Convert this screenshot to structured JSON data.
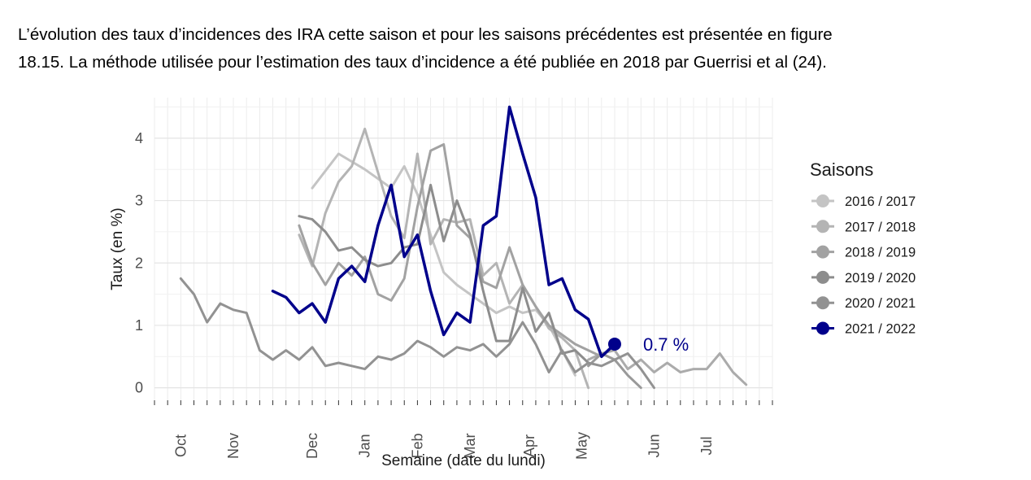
{
  "intro": {
    "line1": "L’évolution des taux d’incidences des IRA cette saison et pour les saisons précédentes est présentée en figure",
    "line2": "18.15. La méthode utilisée pour l’estimation des taux d’incidence a été publiée en 2018 par Guerrisi et al (24)."
  },
  "chart_data": {
    "type": "line",
    "title": "",
    "xlabel": "Semaine (date du lundi)",
    "ylabel": "Taux (en %)",
    "xlim": [
      -1,
      46
    ],
    "ylim": [
      -0.2,
      4.65
    ],
    "x_unit": "weeks since early October",
    "x_ticks": [
      {
        "label": "Oct",
        "x": 1
      },
      {
        "label": "Nov",
        "x": 5
      },
      {
        "label": "Dec",
        "x": 11
      },
      {
        "label": "Jan",
        "x": 15
      },
      {
        "label": "Feb",
        "x": 19
      },
      {
        "label": "Mar",
        "x": 23
      },
      {
        "label": "Apr",
        "x": 27.5
      },
      {
        "label": "May",
        "x": 31.5
      },
      {
        "label": "Jun",
        "x": 37
      },
      {
        "label": "Jul",
        "x": 41
      }
    ],
    "y_ticks": [
      0,
      1,
      2,
      3,
      4
    ],
    "grid": true,
    "legend": {
      "title": "Saisons",
      "position": "right"
    },
    "series": [
      {
        "name": "2016 / 2017",
        "color": "#c4c4c4",
        "x": [
          11,
          13,
          15,
          16,
          17,
          18,
          19,
          20,
          21,
          22,
          23,
          24,
          25,
          26,
          27,
          28,
          29,
          30,
          31
        ],
        "y": [
          3.2,
          3.75,
          3.5,
          3.35,
          3.2,
          3.55,
          3.1,
          2.45,
          1.85,
          1.65,
          1.5,
          1.35,
          1.2,
          1.3,
          1.2,
          1.25,
          1.0,
          0.6,
          0.2
        ]
      },
      {
        "name": "2017 / 2018",
        "color": "#b4b4b4",
        "x": [
          10,
          11,
          12,
          13,
          14,
          15,
          16,
          17,
          18,
          19,
          20,
          21,
          22,
          23,
          24,
          25,
          26,
          27,
          28,
          29,
          30,
          31,
          32
        ],
        "y": [
          2.45,
          1.95,
          2.8,
          3.3,
          3.55,
          4.15,
          3.45,
          2.75,
          2.4,
          3.75,
          2.3,
          2.7,
          2.65,
          2.7,
          1.8,
          2.0,
          1.35,
          1.65,
          1.3,
          0.95,
          0.8,
          0.6,
          0.0
        ]
      },
      {
        "name": "2018 / 2019",
        "color": "#a2a2a2",
        "x": [
          10,
          11,
          12,
          13,
          14,
          15,
          16,
          17,
          18,
          19,
          20,
          21,
          22,
          23,
          24,
          25,
          26,
          27,
          28,
          29,
          30,
          31,
          32,
          33
        ],
        "y": [
          2.6,
          2.0,
          1.65,
          2.0,
          1.8,
          2.1,
          1.5,
          1.4,
          1.75,
          2.9,
          3.8,
          3.9,
          2.6,
          2.4,
          1.7,
          1.6,
          2.25,
          1.65,
          1.3,
          1.0,
          0.85,
          0.7,
          0.6,
          0.5
        ]
      },
      {
        "name": "2019 / 2020",
        "color": "#8d8d8d",
        "x": [
          10,
          11,
          12,
          13,
          14,
          15,
          16,
          17,
          18,
          19,
          20,
          21,
          22,
          23,
          24,
          25,
          26,
          27,
          28,
          29,
          30,
          31,
          32
        ],
        "y": [
          2.75,
          2.7,
          2.5,
          2.2,
          2.25,
          2.05,
          1.95,
          2.0,
          2.25,
          2.3,
          3.25,
          2.35,
          3.0,
          2.45,
          1.55,
          0.75,
          0.75,
          1.6,
          0.9,
          1.2,
          0.55,
          0.6,
          0.4
        ]
      },
      {
        "name": "2020 / 2021",
        "color": "#929292",
        "x": [
          1,
          2,
          3,
          4,
          5,
          6,
          7,
          8,
          9,
          10,
          11,
          12,
          13,
          14,
          15,
          16,
          17,
          18,
          19,
          20,
          21,
          22,
          23,
          24,
          25,
          26,
          27,
          28,
          29,
          30,
          31,
          32,
          33,
          34,
          35,
          36,
          37
        ],
        "y": [
          1.75,
          1.5,
          1.05,
          1.35,
          1.25,
          1.2,
          0.6,
          0.45,
          0.6,
          0.45,
          0.65,
          0.35,
          0.4,
          0.35,
          0.3,
          0.5,
          0.45,
          0.55,
          0.75,
          0.65,
          0.5,
          0.65,
          0.6,
          0.7,
          0.5,
          0.7,
          1.05,
          0.7,
          0.25,
          0.6,
          0.25,
          0.4,
          0.35,
          0.45,
          0.55,
          0.3,
          0.0
        ]
      },
      {
        "name": "2021 / 2022",
        "color": "#00008b",
        "x": [
          8,
          9,
          10,
          11,
          12,
          13,
          14,
          15,
          16,
          17,
          18,
          19,
          20,
          21,
          22,
          23,
          24,
          25,
          26,
          27,
          28,
          29,
          30,
          31,
          32,
          33,
          34
        ],
        "y": [
          1.55,
          1.45,
          1.2,
          1.35,
          1.05,
          1.75,
          1.95,
          1.7,
          2.6,
          3.25,
          2.1,
          2.45,
          1.55,
          0.85,
          1.2,
          1.05,
          2.6,
          2.75,
          4.5,
          3.75,
          3.05,
          1.65,
          1.75,
          1.25,
          1.1,
          0.5,
          0.7
        ]
      }
    ],
    "extra_segments": [
      {
        "color": "#ababab",
        "x": [
          32,
          33,
          34,
          35,
          36,
          37,
          38,
          39,
          40,
          41,
          42,
          43,
          44
        ],
        "y": [
          0.45,
          0.55,
          0.6,
          0.3,
          0.45,
          0.25,
          0.4,
          0.25,
          0.3,
          0.3,
          0.55,
          0.25,
          0.05
        ]
      },
      {
        "color": "#999999",
        "x": [
          32,
          33,
          34,
          35,
          36
        ],
        "y": [
          0.35,
          0.55,
          0.45,
          0.2,
          0.0
        ]
      }
    ],
    "last_point": {
      "series": "2021 / 2022",
      "x": 34,
      "y": 0.7
    },
    "annotation": {
      "text": "0.7 %",
      "color": "#00008b"
    }
  }
}
